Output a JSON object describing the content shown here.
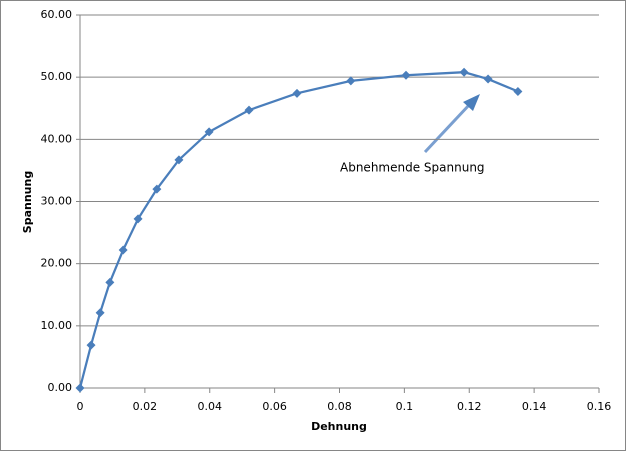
{
  "chart_data": {
    "type": "line",
    "xlabel": "Dehnung",
    "ylabel": "Spannung",
    "annotation": "Abnehmende Spannung",
    "x": [
      0,
      0.0034,
      0.0062,
      0.0092,
      0.0133,
      0.0179,
      0.0237,
      0.0305,
      0.0398,
      0.0521,
      0.0669,
      0.0835,
      0.1005,
      0.1184,
      0.1258,
      0.135
    ],
    "values": [
      0,
      6.9,
      12.1,
      17.0,
      22.2,
      27.2,
      32.0,
      36.7,
      41.2,
      44.7,
      47.4,
      49.4,
      50.3,
      50.8,
      49.7,
      47.7
    ],
    "color": "#4a7ebb",
    "xlim": [
      0,
      0.16
    ],
    "xticks": [
      0,
      0.02,
      0.04,
      0.06,
      0.08,
      0.1,
      0.12,
      0.14,
      0.16
    ],
    "ylim": [
      0,
      60
    ],
    "yticks": [
      {
        "value": 0,
        "label": "0.00"
      },
      {
        "value": 10,
        "label": "10.00"
      },
      {
        "value": 20,
        "label": "20.00"
      },
      {
        "value": 30,
        "label": "30.00"
      },
      {
        "value": 40,
        "label": "40.00"
      },
      {
        "value": 50,
        "label": "50.00"
      },
      {
        "value": 60,
        "label": "60.00"
      }
    ],
    "grid": true
  }
}
